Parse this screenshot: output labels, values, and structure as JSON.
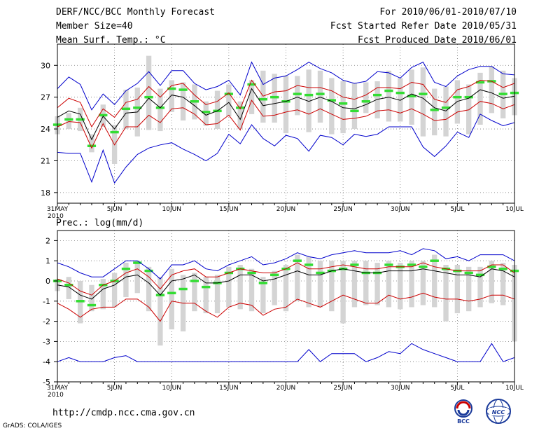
{
  "header": {
    "title": "DERF/NCC/BCC Monthly Forecast",
    "member_size": "Member Size=40",
    "variable": "Mean Surf. Temp.: °C",
    "period": "For 2010/06/01-2010/07/10",
    "refer_date": "Fcst Started Refer Date 2010/05/31",
    "produced_date": "Fcst Produced Date 2010/06/01"
  },
  "footer": {
    "url": "http://cmdp.ncc.cma.gov.cn",
    "credit": "GrADS: COLA/IGES",
    "logo_bcc": "BCC",
    "logo_ncc": "NCC"
  },
  "colors": {
    "envelope": "#0000cc",
    "spread": "#cc0000",
    "mean": "#000000",
    "bar": "#d4d4d4",
    "median": "#33dd33",
    "grid": "#777777"
  },
  "chart_data": [
    {
      "type": "line",
      "title": "Mean Surf. Temp.: °C",
      "ylim": [
        17,
        32
      ],
      "yticks": [
        18,
        21,
        24,
        27,
        30
      ],
      "x_day_range": [
        0,
        40
      ],
      "xtick_days": [
        0,
        5,
        10,
        15,
        20,
        25,
        30,
        35,
        40
      ],
      "xtick_labels": [
        "31MAY",
        "5JUN",
        "10JUN",
        "15JUN",
        "20JUN",
        "25JUN",
        "30JUN",
        "5JUL",
        "10JUL"
      ],
      "x_year_label": "2010",
      "series": [
        {
          "name": "max",
          "values": [
            27.8,
            28.9,
            28.2,
            25.8,
            27.3,
            26.3,
            27.6,
            28.3,
            29.4,
            28.1,
            29.5,
            29.5,
            28.3,
            27.7,
            28.0,
            28.6,
            27.2,
            30.3,
            28.2,
            28.8,
            29.0,
            29.6,
            30.3,
            29.7,
            29.3,
            28.6,
            28.3,
            28.5,
            29.4,
            29.3,
            28.8,
            29.8,
            30.3,
            28.4,
            28.0,
            29.0,
            29.6,
            29.9,
            29.9,
            29.2,
            29.1
          ]
        },
        {
          "name": "upper",
          "values": [
            26.0,
            26.9,
            26.5,
            24.2,
            25.9,
            25.1,
            26.5,
            26.8,
            28.0,
            27.0,
            28.1,
            28.3,
            27.2,
            26.3,
            26.6,
            27.4,
            25.9,
            28.6,
            27.1,
            27.5,
            27.6,
            28.1,
            27.9,
            27.9,
            27.6,
            27.0,
            26.8,
            27.2,
            27.9,
            27.9,
            27.8,
            28.4,
            28.2,
            26.8,
            26.5,
            27.7,
            28.0,
            28.6,
            28.5,
            27.9,
            28.3
          ]
        },
        {
          "name": "mean",
          "values": [
            25.1,
            25.7,
            25.4,
            23.0,
            25.2,
            24.0,
            25.5,
            25.6,
            26.9,
            26.0,
            27.2,
            27.0,
            26.2,
            25.3,
            25.7,
            26.5,
            24.9,
            27.8,
            26.2,
            26.4,
            26.6,
            27.0,
            26.6,
            27.0,
            26.6,
            26.0,
            25.9,
            26.3,
            26.8,
            27.0,
            26.7,
            27.3,
            26.9,
            26.0,
            25.7,
            26.6,
            26.9,
            27.7,
            27.4,
            26.9,
            27.1
          ]
        },
        {
          "name": "lower",
          "values": [
            24.2,
            24.7,
            24.6,
            22.2,
            24.5,
            22.5,
            24.2,
            24.2,
            25.3,
            24.6,
            25.9,
            26.0,
            25.4,
            24.4,
            24.5,
            25.3,
            23.9,
            26.7,
            25.2,
            25.3,
            25.6,
            25.8,
            25.4,
            25.9,
            25.4,
            24.9,
            25.0,
            25.2,
            25.7,
            25.8,
            25.5,
            25.9,
            25.4,
            24.8,
            24.9,
            25.6,
            25.8,
            26.6,
            26.4,
            25.9,
            26.3
          ]
        },
        {
          "name": "min",
          "values": [
            21.8,
            21.7,
            21.7,
            19.0,
            22.0,
            18.9,
            20.4,
            21.6,
            22.2,
            22.5,
            22.7,
            22.1,
            21.6,
            21.0,
            21.7,
            23.5,
            22.6,
            24.4,
            23.1,
            22.4,
            23.4,
            23.1,
            21.9,
            23.4,
            23.2,
            22.5,
            23.5,
            23.3,
            23.5,
            24.2,
            24.2,
            24.2,
            22.3,
            21.4,
            22.4,
            23.7,
            23.2,
            25.4,
            24.8,
            24.3,
            24.6
          ]
        }
      ],
      "bar_series": [
        {
          "day": 0,
          "low": 23.5,
          "high": 25.2,
          "median": 24.4
        },
        {
          "day": 1,
          "low": 24.0,
          "high": 25.5,
          "median": 24.9
        },
        {
          "day": 2,
          "low": 23.8,
          "high": 26.0,
          "median": 24.9
        },
        {
          "day": 3,
          "low": 21.8,
          "high": 23.5,
          "median": 22.4
        },
        {
          "day": 4,
          "low": 24.2,
          "high": 26.3,
          "median": 25.3
        },
        {
          "day": 5,
          "low": 20.7,
          "high": 24.4,
          "median": 23.7
        },
        {
          "day": 6,
          "low": 24.0,
          "high": 27.7,
          "median": 25.9
        },
        {
          "day": 7,
          "low": 23.3,
          "high": 27.9,
          "median": 26.0
        },
        {
          "day": 8,
          "low": 23.9,
          "high": 30.9,
          "median": 27.0
        },
        {
          "day": 9,
          "low": 23.8,
          "high": 27.8,
          "median": 26.0
        },
        {
          "day": 10,
          "low": 25.6,
          "high": 28.6,
          "median": 27.8
        },
        {
          "day": 11,
          "low": 24.8,
          "high": 28.4,
          "median": 27.7
        },
        {
          "day": 12,
          "low": 24.9,
          "high": 28.2,
          "median": 26.6
        },
        {
          "day": 13,
          "low": 24.3,
          "high": 26.6,
          "median": 25.6
        },
        {
          "day": 14,
          "low": 24.0,
          "high": 27.6,
          "median": 25.7
        },
        {
          "day": 15,
          "low": 25.2,
          "high": 28.2,
          "median": 27.3
        },
        {
          "day": 16,
          "low": 24.0,
          "high": 26.6,
          "median": 26.0
        },
        {
          "day": 17,
          "low": 25.4,
          "high": 28.6,
          "median": 28.2
        },
        {
          "day": 18,
          "low": 24.6,
          "high": 29.5,
          "median": 26.8
        },
        {
          "day": 19,
          "low": 24.6,
          "high": 29.2,
          "median": 27.0
        },
        {
          "day": 20,
          "low": 23.6,
          "high": 29.0,
          "median": 26.6
        },
        {
          "day": 21,
          "low": 25.3,
          "high": 29.0,
          "median": 27.3
        },
        {
          "day": 22,
          "low": 23.7,
          "high": 29.6,
          "median": 27.2
        },
        {
          "day": 23,
          "low": 24.6,
          "high": 29.5,
          "median": 27.3
        },
        {
          "day": 24,
          "low": 23.5,
          "high": 28.8,
          "median": 26.7
        },
        {
          "day": 25,
          "low": 23.6,
          "high": 28.5,
          "median": 26.4
        },
        {
          "day": 26,
          "low": 24.0,
          "high": 28.3,
          "median": 25.7
        },
        {
          "day": 27,
          "low": 25.5,
          "high": 28.4,
          "median": 26.6
        },
        {
          "day": 28,
          "low": 25.0,
          "high": 28.5,
          "median": 27.2
        },
        {
          "day": 29,
          "low": 24.7,
          "high": 29.5,
          "median": 27.6
        },
        {
          "day": 30,
          "low": 24.7,
          "high": 28.8,
          "median": 27.4
        },
        {
          "day": 31,
          "low": 24.4,
          "high": 29.6,
          "median": 27.1
        },
        {
          "day": 32,
          "low": 23.3,
          "high": 29.8,
          "median": 27.3
        },
        {
          "day": 33,
          "low": 23.4,
          "high": 27.8,
          "median": 25.8
        },
        {
          "day": 34,
          "low": 23.3,
          "high": 28.0,
          "median": 26.0
        },
        {
          "day": 35,
          "low": 24.5,
          "high": 28.6,
          "median": 27.0
        },
        {
          "day": 36,
          "low": 23.5,
          "high": 28.2,
          "median": 27.0
        },
        {
          "day": 37,
          "low": 24.4,
          "high": 29.3,
          "median": 28.4
        },
        {
          "day": 38,
          "low": 25.5,
          "high": 29.9,
          "median": 28.5
        },
        {
          "day": 39,
          "low": 25.0,
          "high": 29.5,
          "median": 27.3
        },
        {
          "day": 40,
          "low": 25.3,
          "high": 28.8,
          "median": 27.4
        }
      ]
    },
    {
      "type": "line",
      "title": "Prec.: log(mm/d)",
      "ylim": [
        -5,
        2.5
      ],
      "yticks": [
        -5,
        -4,
        -3,
        -2,
        -1,
        0,
        1,
        2
      ],
      "x_day_range": [
        0,
        40
      ],
      "xtick_days": [
        0,
        5,
        10,
        15,
        20,
        25,
        30,
        35,
        40
      ],
      "xtick_labels": [
        "31MAY",
        "5JUN",
        "10JUN",
        "15JUN",
        "20JUN",
        "25JUN",
        "30JUN",
        "5JUL",
        "10JUL"
      ],
      "x_year_label": "2010",
      "series": [
        {
          "name": "max",
          "values": [
            0.9,
            0.7,
            0.4,
            0.2,
            0.2,
            0.6,
            1.0,
            1.0,
            0.6,
            0.1,
            0.8,
            0.8,
            1.0,
            0.6,
            0.5,
            0.8,
            1.0,
            1.2,
            0.8,
            0.9,
            1.1,
            1.4,
            1.2,
            1.1,
            1.3,
            1.4,
            1.5,
            1.4,
            1.4,
            1.4,
            1.5,
            1.3,
            1.6,
            1.5,
            1.1,
            1.2,
            1.0,
            1.3,
            1.3,
            1.3,
            1.0
          ]
        },
        {
          "name": "upper",
          "values": [
            0.1,
            -0.1,
            -0.5,
            -0.7,
            -0.2,
            0.0,
            0.4,
            0.6,
            0.2,
            -0.4,
            0.3,
            0.5,
            0.6,
            0.2,
            0.2,
            0.4,
            0.6,
            0.5,
            0.4,
            0.4,
            0.6,
            0.9,
            0.6,
            0.6,
            0.7,
            0.8,
            0.7,
            0.6,
            0.6,
            0.7,
            0.7,
            0.7,
            0.9,
            0.7,
            0.6,
            0.5,
            0.5,
            0.5,
            0.8,
            0.8,
            0.4
          ]
        },
        {
          "name": "mean",
          "values": [
            -0.2,
            -0.3,
            -0.7,
            -0.9,
            -0.4,
            -0.2,
            0.2,
            0.3,
            -0.1,
            -0.7,
            0.0,
            0.1,
            0.3,
            -0.1,
            -0.1,
            0.0,
            0.3,
            0.3,
            0.0,
            0.1,
            0.3,
            0.5,
            0.3,
            0.3,
            0.5,
            0.6,
            0.5,
            0.4,
            0.4,
            0.5,
            0.5,
            0.5,
            0.6,
            0.5,
            0.4,
            0.3,
            0.3,
            0.2,
            0.6,
            0.5,
            0.2
          ]
        },
        {
          "name": "lower",
          "values": [
            -1.1,
            -1.4,
            -1.8,
            -1.4,
            -1.3,
            -1.3,
            -0.9,
            -0.9,
            -1.3,
            -2.0,
            -1.0,
            -1.1,
            -1.1,
            -1.5,
            -1.8,
            -1.3,
            -1.1,
            -1.2,
            -1.7,
            -1.4,
            -1.3,
            -0.9,
            -1.1,
            -1.3,
            -1.0,
            -0.7,
            -0.9,
            -1.1,
            -1.1,
            -0.7,
            -0.9,
            -0.8,
            -0.6,
            -0.8,
            -0.9,
            -0.9,
            -1.0,
            -0.9,
            -0.7,
            -0.7,
            -0.9
          ]
        },
        {
          "name": "min",
          "values": [
            -4.0,
            -3.8,
            -4.0,
            -4.0,
            -4.0,
            -3.8,
            -3.7,
            -4.0,
            -4.0,
            -4.0,
            -4.0,
            -4.0,
            -4.0,
            -4.0,
            -4.0,
            -4.0,
            -4.0,
            -4.0,
            -4.0,
            -4.0,
            -4.0,
            -4.0,
            -3.4,
            -4.0,
            -3.6,
            -3.6,
            -3.6,
            -4.0,
            -3.8,
            -3.5,
            -3.6,
            -3.1,
            -3.4,
            -3.6,
            -3.8,
            -4.0,
            -4.0,
            -4.0,
            -3.1,
            -4.0,
            -3.8
          ]
        }
      ],
      "bar_series": [
        {
          "day": 0,
          "low": -0.5,
          "high": 0.1,
          "median": 0.0
        },
        {
          "day": 1,
          "low": -0.9,
          "high": 0.2,
          "median": -0.2
        },
        {
          "day": 2,
          "low": -2.1,
          "high": 0.0,
          "median": -1.0
        },
        {
          "day": 3,
          "low": -1.5,
          "high": -0.2,
          "median": -1.2
        },
        {
          "day": 4,
          "low": -1.4,
          "high": 0.1,
          "median": -0.2
        },
        {
          "day": 5,
          "low": -1.3,
          "high": 0.4,
          "median": 0.0
        },
        {
          "day": 6,
          "low": -0.8,
          "high": 0.9,
          "median": 0.6
        },
        {
          "day": 7,
          "low": -0.6,
          "high": 1.0,
          "median": 0.9
        },
        {
          "day": 8,
          "low": -1.5,
          "high": 0.7,
          "median": 0.5
        },
        {
          "day": 9,
          "low": -3.2,
          "high": 0.2,
          "median": -0.7
        },
        {
          "day": 10,
          "low": -2.4,
          "high": 0.6,
          "median": -0.6
        },
        {
          "day": 11,
          "low": -2.5,
          "high": 0.3,
          "median": -0.4
        },
        {
          "day": 12,
          "low": -1.5,
          "high": 0.4,
          "median": 0.0
        },
        {
          "day": 13,
          "low": -1.6,
          "high": 0.2,
          "median": -0.3
        },
        {
          "day": 14,
          "low": -1.6,
          "high": 0.3,
          "median": -0.1
        },
        {
          "day": 15,
          "low": -1.3,
          "high": 0.7,
          "median": 0.4
        },
        {
          "day": 16,
          "low": -1.4,
          "high": 0.8,
          "median": 0.6
        },
        {
          "day": 17,
          "low": -1.5,
          "high": 0.6,
          "median": 0.4
        },
        {
          "day": 18,
          "low": -1.6,
          "high": 0.2,
          "median": -0.1
        },
        {
          "day": 19,
          "low": -1.2,
          "high": 0.5,
          "median": 0.3
        },
        {
          "day": 20,
          "low": -1.5,
          "high": 0.8,
          "median": 0.6
        },
        {
          "day": 21,
          "low": -1.0,
          "high": 1.3,
          "median": 1.0
        },
        {
          "day": 22,
          "low": -1.3,
          "high": 1.2,
          "median": 0.8
        },
        {
          "day": 23,
          "low": -1.3,
          "high": 1.0,
          "median": 0.4
        },
        {
          "day": 24,
          "low": -1.5,
          "high": 1.0,
          "median": 0.5
        },
        {
          "day": 25,
          "low": -2.1,
          "high": 1.0,
          "median": 0.6
        },
        {
          "day": 26,
          "low": -1.3,
          "high": 1.0,
          "median": 0.8
        },
        {
          "day": 27,
          "low": -1.2,
          "high": 1.0,
          "median": 0.4
        },
        {
          "day": 28,
          "low": -1.2,
          "high": 0.9,
          "median": 0.4
        },
        {
          "day": 29,
          "low": -1.3,
          "high": 1.0,
          "median": 0.8
        },
        {
          "day": 30,
          "low": -1.4,
          "high": 0.9,
          "median": 0.7
        },
        {
          "day": 31,
          "low": -1.3,
          "high": 1.0,
          "median": 0.8
        },
        {
          "day": 32,
          "low": -1.2,
          "high": 1.0,
          "median": 0.7
        },
        {
          "day": 33,
          "low": -1.3,
          "high": 1.3,
          "median": 1.0
        },
        {
          "day": 34,
          "low": -2.0,
          "high": 0.8,
          "median": 0.6
        },
        {
          "day": 35,
          "low": -1.6,
          "high": 0.8,
          "median": 0.5
        },
        {
          "day": 36,
          "low": -1.5,
          "high": 0.7,
          "median": 0.4
        },
        {
          "day": 37,
          "low": -1.3,
          "high": 0.7,
          "median": 0.3
        },
        {
          "day": 38,
          "low": -1.1,
          "high": 1.0,
          "median": 0.7
        },
        {
          "day": 39,
          "low": -1.2,
          "high": 0.9,
          "median": 0.6
        },
        {
          "day": 40,
          "low": -3.0,
          "high": 0.8,
          "median": 0.5
        }
      ]
    }
  ]
}
